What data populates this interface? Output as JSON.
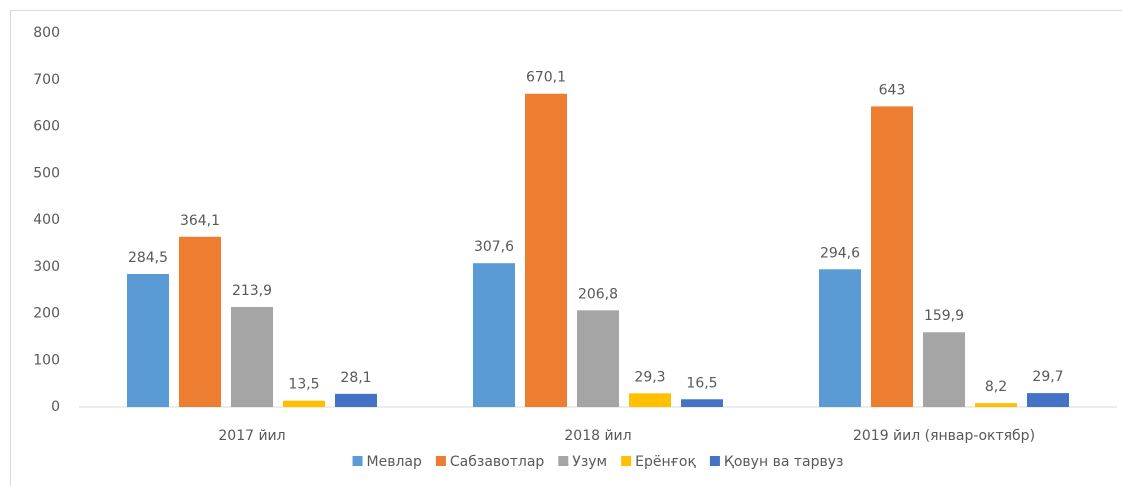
{
  "chart_data": {
    "type": "bar",
    "categories": [
      "2017 йил",
      "2018 йил",
      "2019 йил  (январ-октябр)"
    ],
    "series": [
      {
        "name": "Мевлар",
        "color": "#5b9bd5",
        "values": [
          284.5,
          307.6,
          294.6
        ],
        "value_labels": [
          "284,5",
          "307,6",
          "294,6"
        ]
      },
      {
        "name": "Сабзавотлар",
        "color": "#ed7d31",
        "values": [
          364.1,
          670.1,
          643
        ],
        "value_labels": [
          "364,1",
          "670,1",
          "643"
        ]
      },
      {
        "name": "Узум",
        "color": "#a5a5a5",
        "values": [
          213.9,
          206.8,
          159.9
        ],
        "value_labels": [
          "213,9",
          "206,8",
          "159,9"
        ]
      },
      {
        "name": "Ерёнғоқ",
        "color": "#ffc000",
        "values": [
          13.5,
          29.3,
          8.2
        ],
        "value_labels": [
          "13,5",
          "29,3",
          "8,2"
        ]
      },
      {
        "name": "Қовун ва тарвуз",
        "color": "#4472c4",
        "values": [
          28.1,
          16.5,
          29.7
        ],
        "value_labels": [
          "28,1",
          "16,5",
          "29,7"
        ]
      }
    ],
    "ylim": [
      0,
      800
    ],
    "yticks": [
      0,
      100,
      200,
      300,
      400,
      500,
      600,
      700,
      800
    ],
    "grid": false,
    "legend": "bottom"
  }
}
